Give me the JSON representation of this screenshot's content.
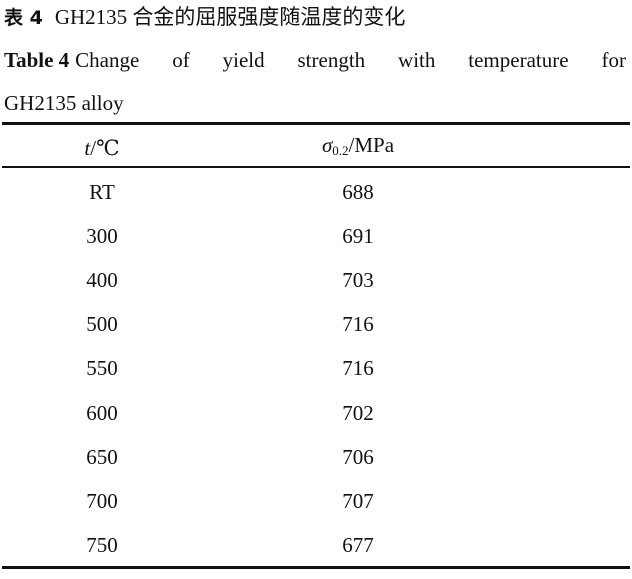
{
  "caption_cn": {
    "label": "表 4",
    "text": "GH2135 合金的屈服强度随温度的变化"
  },
  "caption_en": {
    "label": "Table 4",
    "words": [
      "Change",
      "of",
      "yield",
      "strength",
      "with",
      "temperature",
      "for"
    ],
    "line2": "GH2135 alloy"
  },
  "table": {
    "headers": {
      "col1_var": "t",
      "col1_unit": "/℃",
      "col2_var": "σ",
      "col2_sub": "0.2",
      "col2_unit": "/MPa"
    },
    "rows": [
      [
        "RT",
        "688"
      ],
      [
        "300",
        "691"
      ],
      [
        "400",
        "703"
      ],
      [
        "500",
        "716"
      ],
      [
        "550",
        "716"
      ],
      [
        "600",
        "702"
      ],
      [
        "650",
        "706"
      ],
      [
        "700",
        "707"
      ],
      [
        "750",
        "677"
      ]
    ]
  }
}
